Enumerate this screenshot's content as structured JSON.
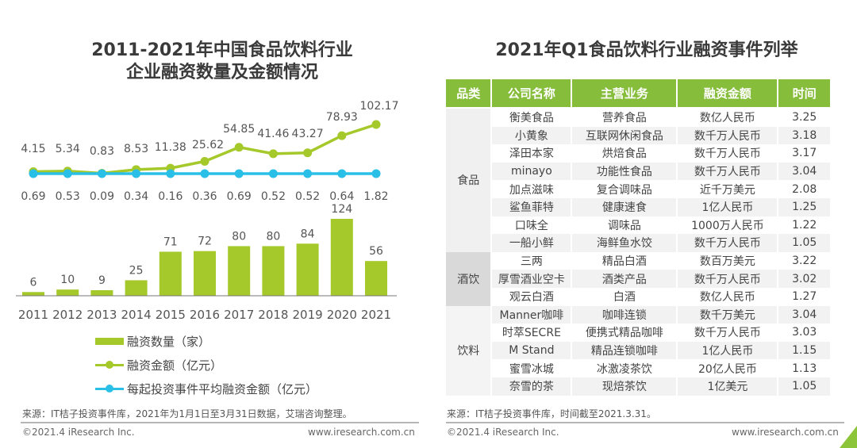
{
  "left": {
    "title_line1": "2011-2021年中国食品饮料行业",
    "title_line2": "企业融资数量及金额情况",
    "legend": [
      {
        "label": "融资数量（家）",
        "type": "bar",
        "color": "#a5c82a"
      },
      {
        "label": "融资金额（亿元）",
        "type": "line",
        "color": "#a5c82a"
      },
      {
        "label": "每起投资事件平均融资金额（亿元）",
        "type": "line",
        "color": "#29bfe6"
      }
    ],
    "source": "来源：IT桔子投资事件库，2021年为1月1日至3月31日数据，艾瑞咨询整理。",
    "copyright": "©2021.4 iResearch Inc.",
    "website": "www.iresearch.com.cn"
  },
  "chart_data": {
    "type": "bar",
    "title": "2011-2021年中国食品饮料行业企业融资数量及金额情况",
    "categories": [
      "2011",
      "2012",
      "2013",
      "2014",
      "2015",
      "2016",
      "2017",
      "2018",
      "2019",
      "2020",
      "2021"
    ],
    "series": [
      {
        "name": "融资数量（家）",
        "type": "bar",
        "color": "#a5c82a",
        "values": [
          6,
          10,
          9,
          25,
          71,
          72,
          80,
          80,
          84,
          124,
          56
        ]
      },
      {
        "name": "融资金额（亿元）",
        "type": "line",
        "color": "#a5c82a",
        "values": [
          4.15,
          5.34,
          0.83,
          8.53,
          11.38,
          25.62,
          54.85,
          41.46,
          43.27,
          78.93,
          102.17
        ]
      },
      {
        "name": "每起投资事件平均融资金额（亿元）",
        "type": "line",
        "color": "#29bfe6",
        "values": [
          0.69,
          0.53,
          0.09,
          0.34,
          0.16,
          0.36,
          0.69,
          0.52,
          0.52,
          0.64,
          1.82
        ]
      }
    ],
    "xlabel": "",
    "ylabel": "",
    "grid": false,
    "legend_position": "bottom"
  },
  "right": {
    "title": "2021年Q1食品饮料行业融资事件列举",
    "headers": [
      "品类",
      "公司名称",
      "主营业务",
      "融资金额",
      "时间"
    ],
    "groups": [
      {
        "category": "食品",
        "rows": [
          [
            "衡美食品",
            "营养食品",
            "数亿人民币",
            "3.25"
          ],
          [
            "小黄象",
            "互联网休闲食品",
            "数千万人民币",
            "3.18"
          ],
          [
            "泽田本家",
            "烘焙食品",
            "数千万人民币",
            "3.17"
          ],
          [
            "minayo",
            "功能性食品",
            "数千万人民币",
            "3.04"
          ],
          [
            "加点滋味",
            "复合调味品",
            "近千万美元",
            "2.08"
          ],
          [
            "鲨鱼菲特",
            "健康速食",
            "1亿人民币",
            "1.25"
          ],
          [
            "口味全",
            "调味品",
            "1000万人民币",
            "1.22"
          ],
          [
            "一船小鲜",
            "海鲜鱼水饺",
            "数千万人民币",
            "1.05"
          ]
        ]
      },
      {
        "category": "酒饮",
        "rows": [
          [
            "三两",
            "精品白酒",
            "数百万美元",
            "3.22"
          ],
          [
            "厚雪酒业空卡",
            "酒类产品",
            "数千万人民币",
            "3.02"
          ],
          [
            "观云白酒",
            "白酒",
            "数亿人民币",
            "1.27"
          ]
        ]
      },
      {
        "category": "饮料",
        "rows": [
          [
            "Manner咖啡",
            "咖啡连锁",
            "数千万美元",
            "3.04"
          ],
          [
            "时萃SECRE",
            "便携式精品咖啡",
            "数千万人民币",
            "3.03"
          ],
          [
            "M Stand",
            "精品连锁咖啡",
            "1亿人民币",
            "1.15"
          ],
          [
            "蜜雪冰城",
            "冰激凌茶饮",
            "20亿人民币",
            "1.13"
          ],
          [
            "奈雪的茶",
            "现焙茶饮",
            "1亿美元",
            "1.05"
          ]
        ]
      }
    ],
    "source": "来源：IT桔子投资事件库，时间截至2021.3.31。",
    "copyright": "©2021.4 iResearch Inc.",
    "website": "www.iresearch.com.cn"
  }
}
